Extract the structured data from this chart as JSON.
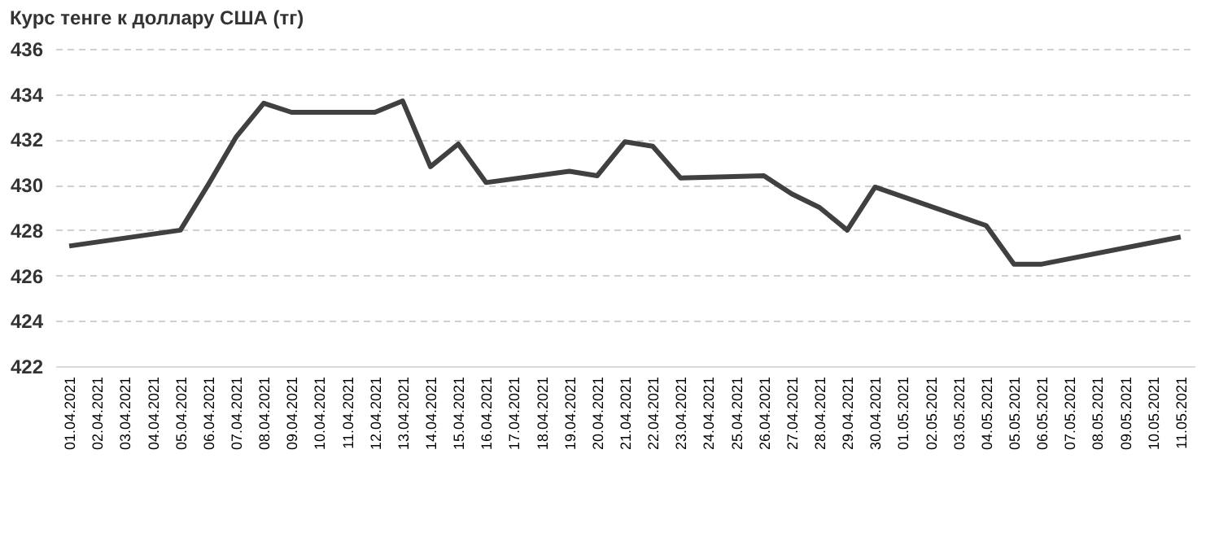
{
  "chart_data": {
    "type": "line",
    "title": "Курс тенге к доллару США (тг)",
    "categories": [
      "01.04.2021",
      "02.04.2021",
      "03.04.2021",
      "04.04.2021",
      "05.04.2021",
      "06.04.2021",
      "07.04.2021",
      "08.04.2021",
      "09.04.2021",
      "10.04.2021",
      "11.04.2021",
      "12.04.2021",
      "13.04.2021",
      "14.04.2021",
      "15.04.2021",
      "16.04.2021",
      "17.04.2021",
      "18.04.2021",
      "19.04.2021",
      "20.04.2021",
      "21.04.2021",
      "22.04.2021",
      "23.04.2021",
      "24.04.2021",
      "25.04.2021",
      "26.04.2021",
      "27.04.2021",
      "28.04.2021",
      "29.04.2021",
      "30.04.2021",
      "01.05.2021",
      "02.05.2021",
      "03.05.2021",
      "04.05.2021",
      "05.05.2021",
      "06.05.2021",
      "07.05.2021",
      "08.05.2021",
      "09.05.2021",
      "10.05.2021",
      "11.05.2021"
    ],
    "series": [
      {
        "color": "#404040",
        "values": [
          427.3,
          null,
          null,
          null,
          428.0,
          430.0,
          432.1,
          433.6,
          433.2,
          null,
          null,
          433.2,
          433.7,
          430.8,
          431.8,
          430.1,
          null,
          null,
          430.6,
          430.4,
          431.9,
          431.7,
          430.3,
          null,
          null,
          430.4,
          429.6,
          429.0,
          428.0,
          429.9,
          null,
          null,
          null,
          428.2,
          426.5,
          426.5,
          null,
          null,
          null,
          null,
          427.7
        ]
      }
    ],
    "ylim": [
      422,
      436
    ],
    "yticks": [
      422,
      424,
      426,
      428,
      430,
      432,
      434,
      436
    ],
    "grid": "y",
    "line_style": "solid",
    "marker": "none"
  }
}
